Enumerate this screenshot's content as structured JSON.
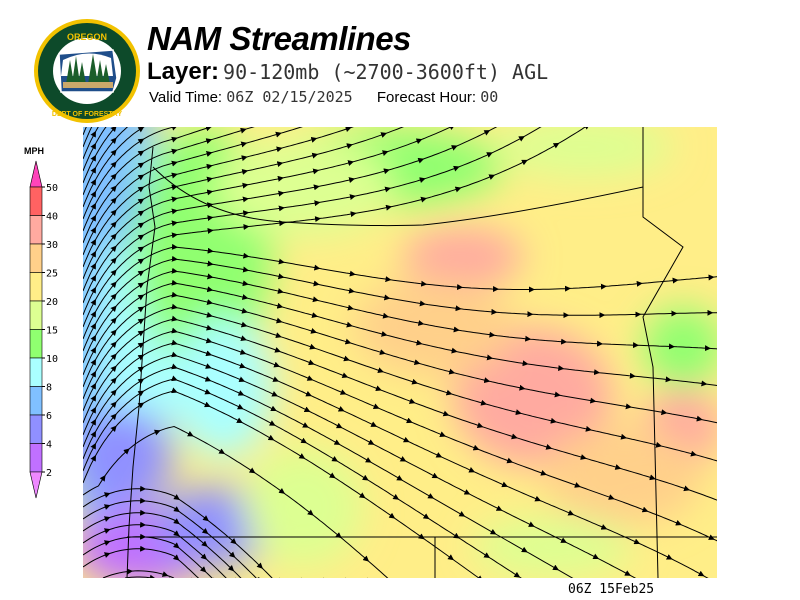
{
  "header": {
    "logo_text": "OREGON DEPARTMENT OF FORESTRY",
    "title": "NAM Streamlines",
    "layer_label": "Layer:",
    "layer_value": "90-120mb (~2700-3600ft) AGL",
    "valid_time_label": "Valid Time:",
    "valid_time_value": "06Z 02/15/2025",
    "forecast_hour_label": "Forecast Hour:",
    "forecast_hour_value": "00"
  },
  "legend": {
    "unit": "MPH",
    "ticks": [
      "50",
      "40",
      "30",
      "25",
      "20",
      "15",
      "10",
      "8",
      "6",
      "4",
      "2"
    ],
    "colors": {
      "above_50": "#ff44bb",
      "40-50": "#ff6262",
      "30-40": "#ffaaa0",
      "25-30": "#ffd08a",
      "20-25": "#ffee88",
      "15-20": "#ddff92",
      "10-15": "#90ff70",
      "8-10": "#aaffff",
      "6-8": "#80c0ff",
      "4-6": "#9090ff",
      "2-4": "#c070ff",
      "below_2": "#ee88ff"
    }
  },
  "map": {
    "region": "Oregon",
    "field": "wind speed with streamlines"
  },
  "footer": {
    "timestamp": "06Z 15Feb25"
  }
}
